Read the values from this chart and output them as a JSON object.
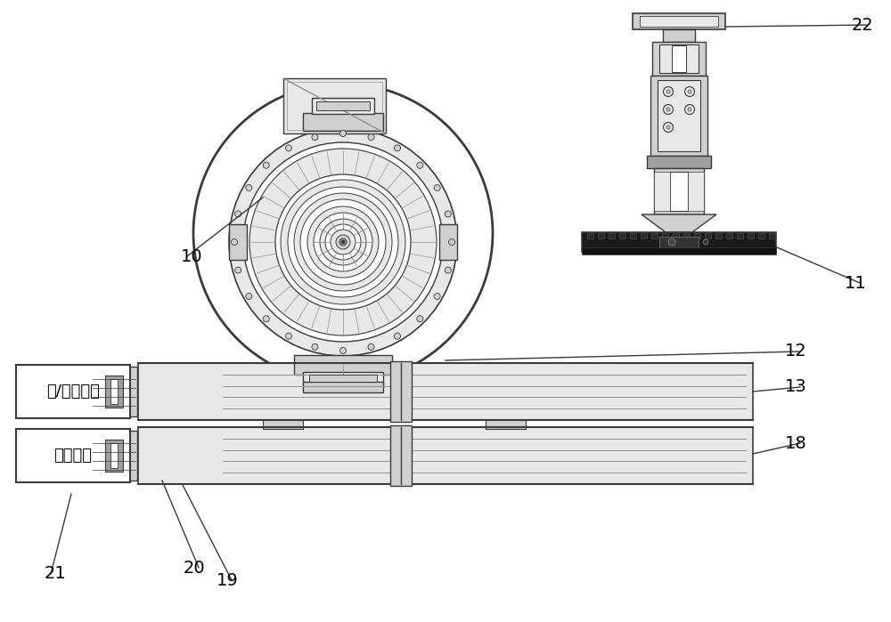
{
  "bg_color": "#ffffff",
  "line_color": "#3a3a3a",
  "light_gray": "#c8c8c8",
  "mid_gray": "#909090",
  "dark_gray": "#505050",
  "fill_light": "#e8e8e8",
  "fill_mid": "#d0d0d0",
  "fill_dark": "#a0a0a0",
  "fill_black": "#1a1a1a",
  "label_10": "10",
  "label_11": "11",
  "label_12": "12",
  "label_13": "13",
  "label_18": "18",
  "label_19": "19",
  "label_20": "20",
  "label_21": "21",
  "label_22": "22",
  "text_box1": "力/力矩检测",
  "text_box2": "位置调整",
  "fig_width": 10.0,
  "fig_height": 6.99
}
